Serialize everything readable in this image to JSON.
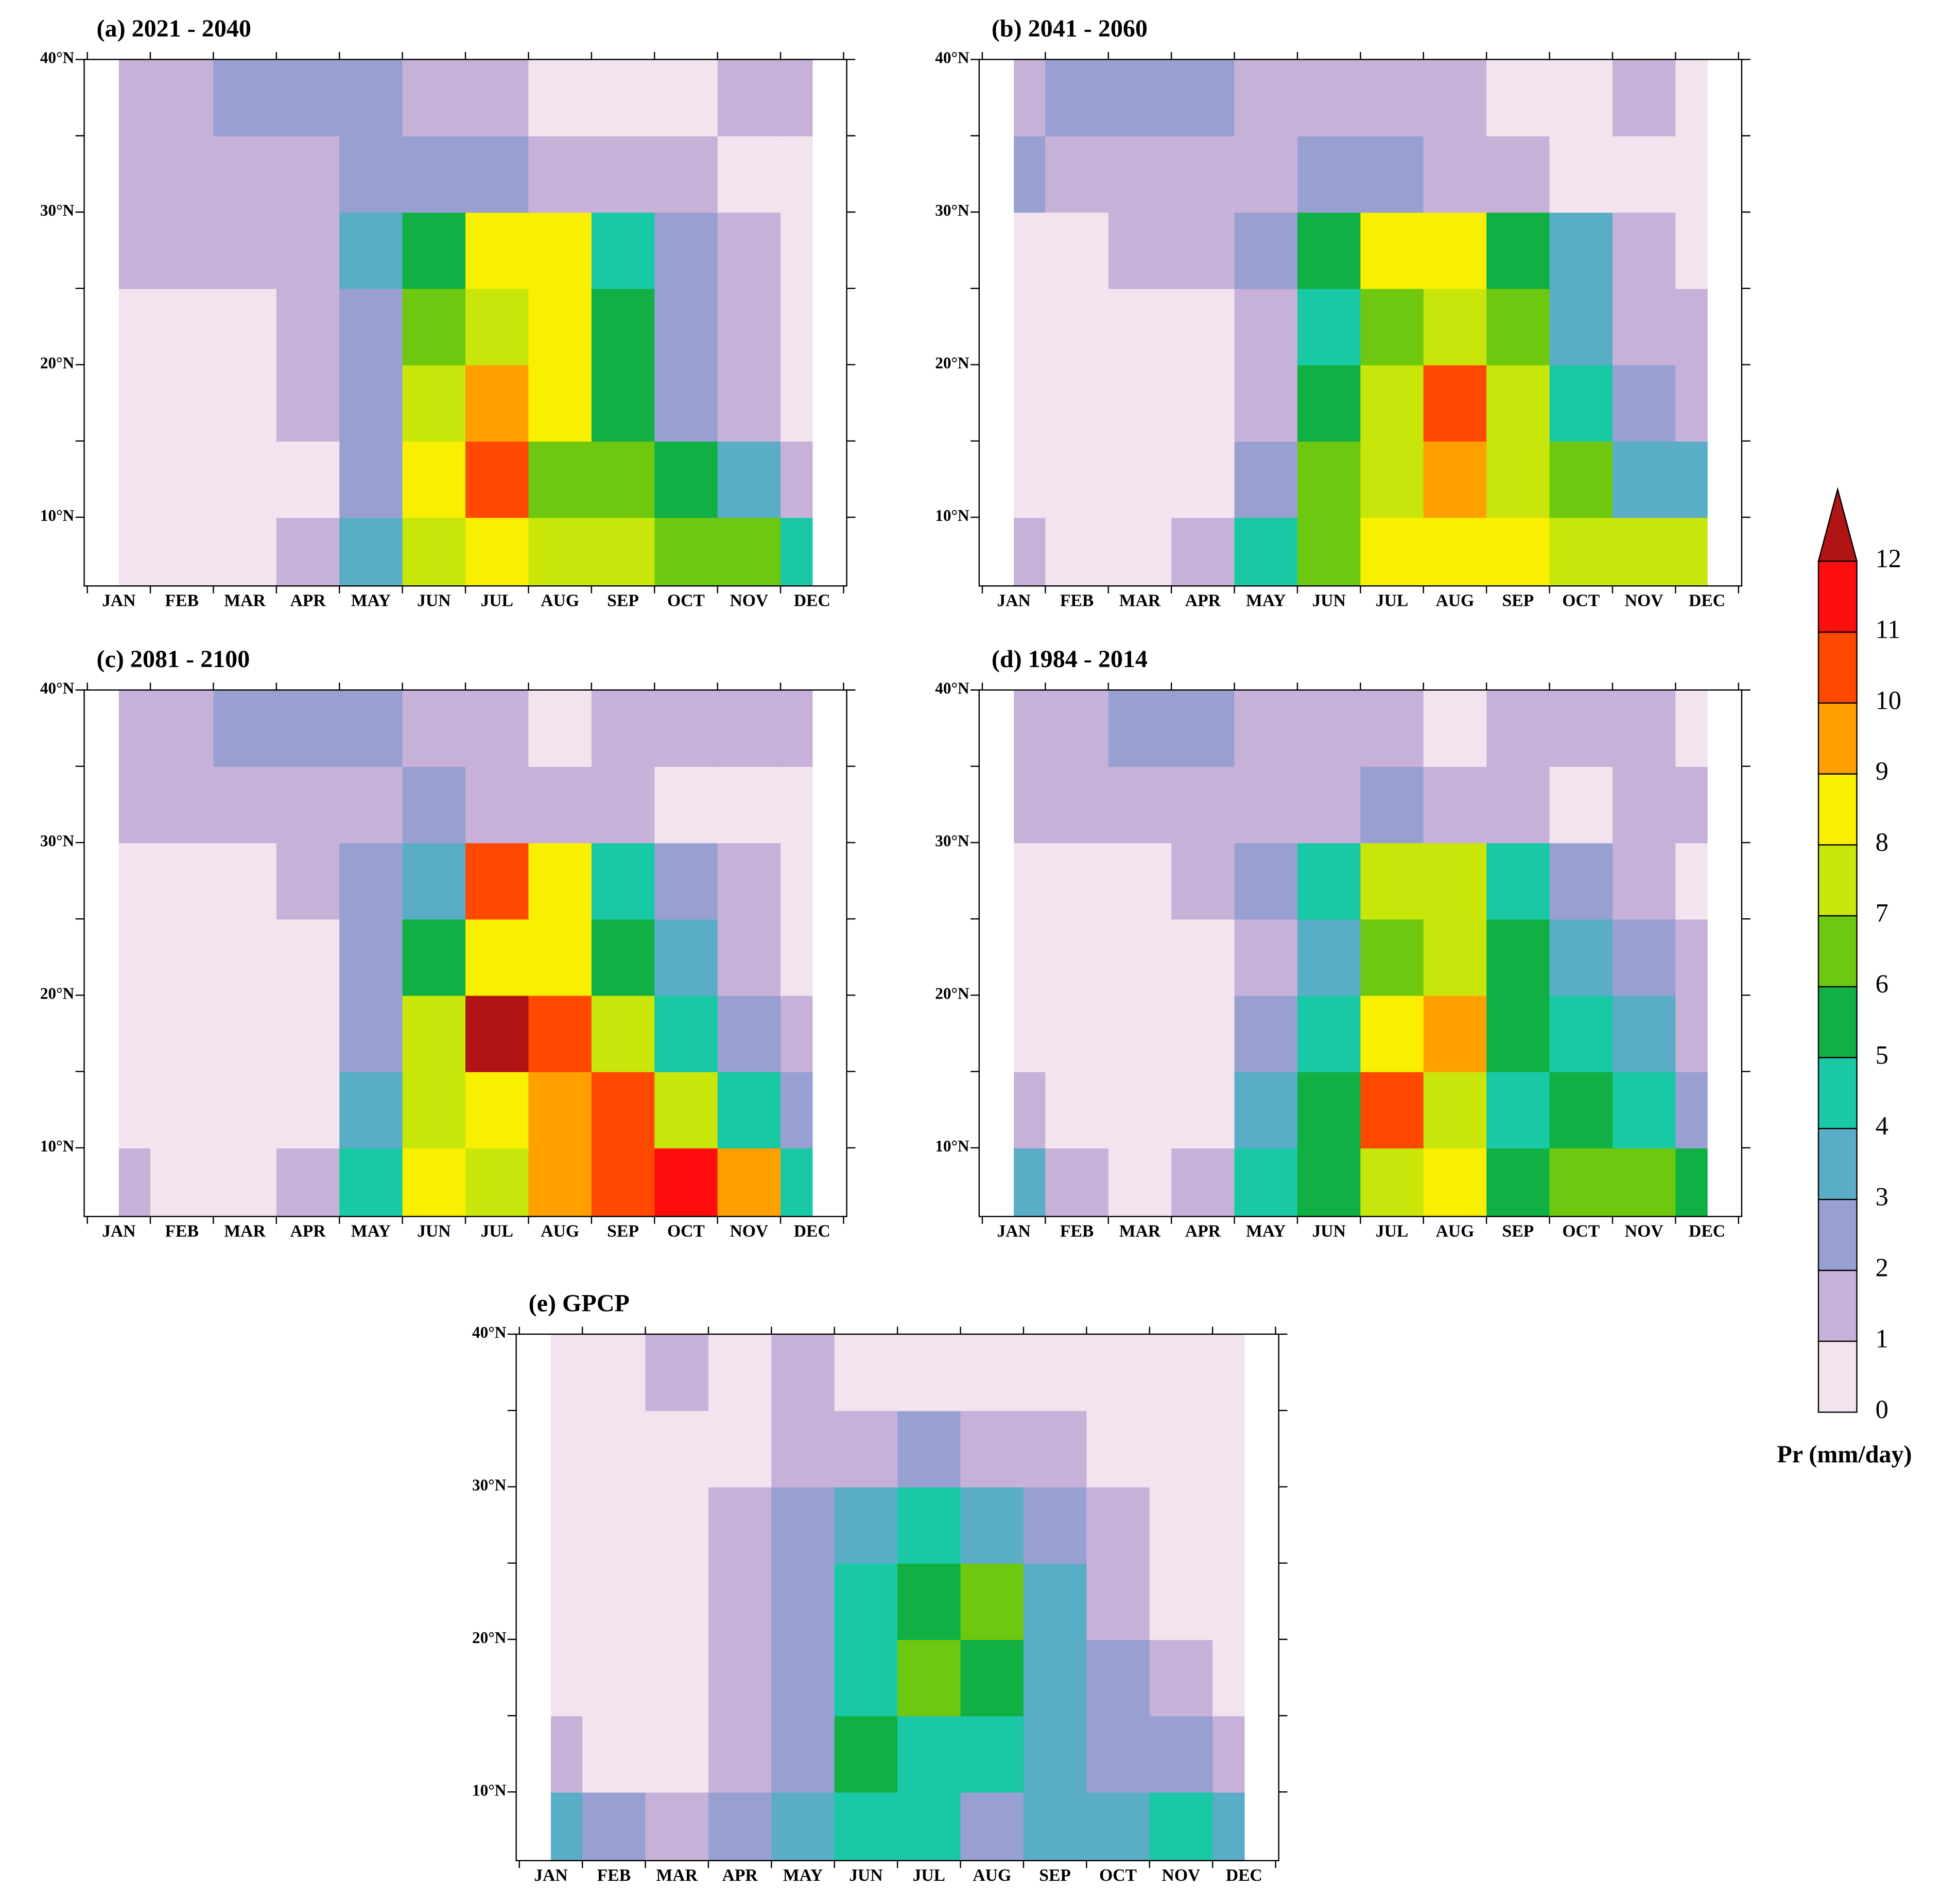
{
  "chart_data": [
    {
      "type": "contour",
      "title": "(a) 2021 - 2040",
      "categories": [
        "JAN",
        "FEB",
        "MAR",
        "APR",
        "MAY",
        "JUN",
        "JUL",
        "AUG",
        "SEP",
        "OCT",
        "NOV",
        "DEC"
      ],
      "y": [
        7.5,
        12.5,
        17.5,
        22.5,
        27.5,
        32.5,
        37.5
      ],
      "values": [
        [
          0.5,
          0.5,
          0.5,
          1.5,
          3.5,
          7.5,
          8.5,
          7.5,
          7.5,
          6.5,
          6.5,
          4.5
        ],
        [
          0.5,
          0.5,
          0.5,
          0.5,
          2.5,
          8.5,
          10.5,
          6.5,
          6.5,
          5.5,
          3.5,
          1.5
        ],
        [
          0.5,
          0.5,
          0.5,
          1.5,
          2.5,
          7.5,
          9.5,
          8.5,
          5.5,
          2.5,
          1.5,
          0.5
        ],
        [
          0.5,
          0.5,
          0.5,
          1.5,
          2.5,
          6.5,
          7.5,
          8.5,
          5.5,
          2.5,
          1.5,
          0.5
        ],
        [
          1.5,
          1.5,
          1.5,
          1.5,
          3.5,
          5.5,
          8.5,
          8.5,
          4.5,
          2.5,
          1.5,
          0.5
        ],
        [
          1.5,
          1.5,
          1.5,
          1.5,
          2.5,
          2.5,
          2.5,
          1.5,
          1.5,
          1.5,
          0.5,
          0.5
        ],
        [
          1.5,
          1.5,
          2.5,
          2.5,
          2.5,
          1.5,
          1.5,
          0.5,
          0.5,
          0.5,
          1.5,
          1.5
        ]
      ],
      "ylim": [
        5.5,
        40
      ],
      "yticks": [
        {
          "value": 10,
          "label": "10°N"
        },
        {
          "value": 20,
          "label": "20°N"
        },
        {
          "value": 30,
          "label": "30°N"
        },
        {
          "value": 40,
          "label": "40°N"
        }
      ],
      "yminorticks": [
        15,
        25,
        35
      ]
    },
    {
      "type": "contour",
      "title": "(b) 2041 - 2060",
      "categories": [
        "JAN",
        "FEB",
        "MAR",
        "APR",
        "MAY",
        "JUN",
        "JUL",
        "AUG",
        "SEP",
        "OCT",
        "NOV",
        "DEC"
      ],
      "y": [
        7.5,
        12.5,
        17.5,
        22.5,
        27.5,
        32.5,
        37.5
      ],
      "values": [
        [
          1.5,
          0.5,
          0.5,
          1.5,
          4.5,
          6.5,
          8.5,
          8.5,
          8.5,
          7.5,
          7.5,
          7.5
        ],
        [
          0.5,
          0.5,
          0.5,
          0.5,
          2.5,
          6.5,
          7.5,
          9.5,
          7.5,
          6.5,
          3.5,
          3.5
        ],
        [
          0.5,
          0.5,
          0.5,
          0.5,
          1.5,
          5.5,
          7.5,
          10.5,
          7.5,
          4.5,
          2.5,
          1.5
        ],
        [
          0.5,
          0.5,
          0.5,
          0.5,
          1.5,
          4.5,
          6.5,
          7.5,
          6.5,
          3.5,
          1.5,
          1.5
        ],
        [
          0.5,
          0.5,
          1.5,
          1.5,
          2.5,
          5.5,
          8.5,
          8.5,
          5.5,
          3.5,
          1.5,
          0.5
        ],
        [
          2.5,
          1.5,
          1.5,
          1.5,
          1.5,
          2.5,
          2.5,
          1.5,
          1.5,
          0.5,
          0.5,
          0.5
        ],
        [
          1.5,
          2.5,
          2.5,
          2.5,
          1.5,
          1.5,
          1.5,
          1.5,
          0.5,
          0.5,
          1.5,
          0.5
        ]
      ],
      "ylim": [
        5.5,
        40
      ],
      "yticks": [
        {
          "value": 10,
          "label": "10°N"
        },
        {
          "value": 20,
          "label": "20°N"
        },
        {
          "value": 30,
          "label": "30°N"
        },
        {
          "value": 40,
          "label": "40°N"
        }
      ],
      "yminorticks": [
        15,
        25,
        35
      ]
    },
    {
      "type": "contour",
      "title": "(c) 2081 - 2100",
      "categories": [
        "JAN",
        "FEB",
        "MAR",
        "APR",
        "MAY",
        "JUN",
        "JUL",
        "AUG",
        "SEP",
        "OCT",
        "NOV",
        "DEC"
      ],
      "y": [
        7.5,
        12.5,
        17.5,
        22.5,
        27.5,
        32.5,
        37.5
      ],
      "values": [
        [
          1.5,
          0.5,
          0.5,
          1.5,
          4.5,
          8.5,
          7.5,
          9.5,
          10.5,
          11.5,
          9.5,
          4.5
        ],
        [
          0.5,
          0.5,
          0.5,
          0.5,
          3.5,
          7.5,
          8.5,
          9.5,
          10.5,
          7.5,
          4.5,
          2.5
        ],
        [
          0.5,
          0.5,
          0.5,
          0.5,
          2.5,
          7.5,
          12.5,
          10.5,
          7.5,
          4.5,
          2.5,
          1.5
        ],
        [
          0.5,
          0.5,
          0.5,
          0.5,
          2.5,
          5.5,
          8.5,
          8.5,
          5.5,
          3.5,
          1.5,
          0.5
        ],
        [
          0.5,
          0.5,
          0.5,
          1.5,
          2.5,
          3.5,
          10.5,
          8.5,
          4.5,
          2.5,
          1.5,
          0.5
        ],
        [
          1.5,
          1.5,
          1.5,
          1.5,
          1.5,
          2.5,
          1.5,
          1.5,
          1.5,
          0.5,
          0.5,
          0.5
        ],
        [
          1.5,
          1.5,
          2.5,
          2.5,
          2.5,
          1.5,
          1.5,
          0.5,
          1.5,
          1.5,
          1.5,
          1.5
        ]
      ],
      "ylim": [
        5.5,
        40
      ],
      "yticks": [
        {
          "value": 10,
          "label": "10°N"
        },
        {
          "value": 20,
          "label": "20°N"
        },
        {
          "value": 30,
          "label": "30°N"
        },
        {
          "value": 40,
          "label": "40°N"
        }
      ],
      "yminorticks": [
        15,
        25,
        35
      ]
    },
    {
      "type": "contour",
      "title": "(d) 1984 - 2014",
      "categories": [
        "JAN",
        "FEB",
        "MAR",
        "APR",
        "MAY",
        "JUN",
        "JUL",
        "AUG",
        "SEP",
        "OCT",
        "NOV",
        "DEC"
      ],
      "y": [
        7.5,
        12.5,
        17.5,
        22.5,
        27.5,
        32.5,
        37.5
      ],
      "values": [
        [
          3.5,
          1.5,
          0.5,
          1.5,
          4.5,
          5.5,
          7.5,
          8.5,
          5.5,
          6.5,
          6.5,
          5.5
        ],
        [
          1.5,
          0.5,
          0.5,
          0.5,
          3.5,
          5.5,
          10.5,
          7.5,
          4.5,
          5.5,
          4.5,
          2.5
        ],
        [
          0.5,
          0.5,
          0.5,
          0.5,
          2.5,
          4.5,
          8.5,
          9.5,
          5.5,
          4.5,
          3.5,
          1.5
        ],
        [
          0.5,
          0.5,
          0.5,
          0.5,
          1.5,
          3.5,
          6.5,
          7.5,
          5.5,
          3.5,
          2.5,
          1.5
        ],
        [
          0.5,
          0.5,
          0.5,
          1.5,
          2.5,
          4.5,
          7.5,
          7.5,
          4.5,
          2.5,
          1.5,
          0.5
        ],
        [
          1.5,
          1.5,
          1.5,
          1.5,
          1.5,
          1.5,
          2.5,
          1.5,
          1.5,
          0.5,
          1.5,
          1.5
        ],
        [
          1.5,
          1.5,
          2.5,
          2.5,
          1.5,
          1.5,
          1.5,
          0.5,
          1.5,
          1.5,
          1.5,
          0.5
        ]
      ],
      "ylim": [
        5.5,
        40
      ],
      "yticks": [
        {
          "value": 10,
          "label": "10°N"
        },
        {
          "value": 20,
          "label": "20°N"
        },
        {
          "value": 30,
          "label": "30°N"
        },
        {
          "value": 40,
          "label": "40°N"
        }
      ],
      "yminorticks": [
        15,
        25,
        35
      ]
    },
    {
      "type": "contour",
      "title": "(e) GPCP",
      "categories": [
        "JAN",
        "FEB",
        "MAR",
        "APR",
        "MAY",
        "JUN",
        "JUL",
        "AUG",
        "SEP",
        "OCT",
        "NOV",
        "DEC"
      ],
      "y": [
        7.5,
        12.5,
        17.5,
        22.5,
        27.5,
        32.5,
        37.5
      ],
      "values": [
        [
          3.5,
          2.5,
          1.5,
          2.5,
          3.5,
          4.5,
          4.5,
          2.5,
          3.5,
          3.5,
          4.5,
          3.5
        ],
        [
          1.5,
          0.5,
          0.5,
          1.5,
          2.5,
          5.5,
          4.5,
          4.5,
          3.5,
          2.5,
          2.5,
          1.5
        ],
        [
          0.5,
          0.5,
          0.5,
          1.5,
          2.5,
          4.5,
          6.5,
          5.5,
          3.5,
          2.5,
          1.5,
          0.5
        ],
        [
          0.5,
          0.5,
          0.5,
          1.5,
          2.5,
          4.5,
          5.5,
          6.5,
          3.5,
          1.5,
          0.5,
          0.5
        ],
        [
          0.5,
          0.5,
          0.5,
          1.5,
          2.5,
          3.5,
          4.5,
          3.5,
          2.5,
          1.5,
          0.5,
          0.5
        ],
        [
          0.5,
          0.5,
          0.5,
          0.5,
          1.5,
          1.5,
          2.5,
          1.5,
          1.5,
          0.5,
          0.5,
          0.5
        ],
        [
          0.5,
          0.5,
          1.5,
          0.5,
          1.5,
          0.5,
          0.5,
          0.5,
          0.5,
          0.5,
          0.5,
          0.5
        ]
      ],
      "ylim": [
        5.5,
        40
      ],
      "yticks": [
        {
          "value": 10,
          "label": "10°N"
        },
        {
          "value": 20,
          "label": "20°N"
        },
        {
          "value": 30,
          "label": "30°N"
        },
        {
          "value": 40,
          "label": "40°N"
        }
      ],
      "yminorticks": [
        15,
        25,
        35
      ]
    }
  ],
  "colorbar": {
    "label": "Pr (mm/day)",
    "extend": "max",
    "levels": [
      0,
      1,
      2,
      3,
      4,
      5,
      6,
      7,
      8,
      9,
      10,
      11,
      12
    ],
    "colors": [
      "#f3e3ef",
      "#c8b1d9",
      "#98a0d2",
      "#5aadc6",
      "#19c8a5",
      "#10b044",
      "#6ec80f",
      "#c8e60a",
      "#f8f000",
      "#ffa000",
      "#ff4800",
      "#ff0e0e",
      "#b01414"
    ]
  }
}
